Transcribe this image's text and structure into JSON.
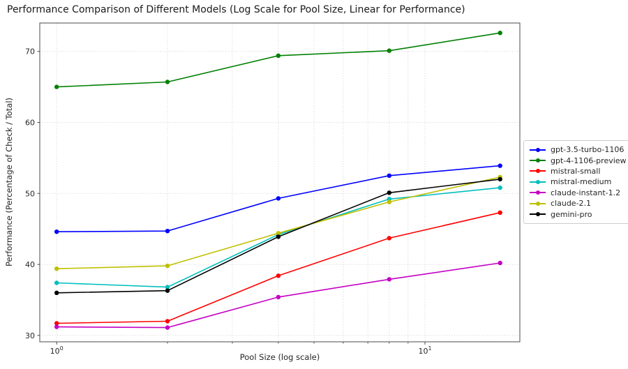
{
  "chart_data": {
    "type": "line",
    "title": "Performance Comparison of Different Models (Log Scale for Pool Size, Linear for Performance)",
    "xlabel": "Pool Size (log scale)",
    "ylabel": "Performance (Percentage of Check / Total)",
    "x": [
      1,
      2,
      4,
      8,
      16
    ],
    "series": [
      {
        "name": "gpt-3.5-turbo-1106",
        "color": "#0000ff",
        "values": [
          44.6,
          44.7,
          49.3,
          52.5,
          53.9
        ]
      },
      {
        "name": "gpt-4-1106-preview",
        "color": "#008000",
        "values": [
          65.0,
          65.7,
          69.4,
          70.1,
          72.6
        ]
      },
      {
        "name": "mistral-small",
        "color": "#ff0000",
        "values": [
          31.7,
          32.0,
          38.4,
          43.7,
          47.3
        ]
      },
      {
        "name": "mistral-medium",
        "color": "#00bfbf",
        "values": [
          37.4,
          36.8,
          44.2,
          49.2,
          50.8
        ]
      },
      {
        "name": "claude-instant-1.2",
        "color": "#c400c4",
        "values": [
          31.2,
          31.1,
          35.4,
          37.9,
          40.2
        ]
      },
      {
        "name": "claude-2.1",
        "color": "#bfbf00",
        "values": [
          39.4,
          39.8,
          44.4,
          48.8,
          52.3
        ]
      },
      {
        "name": "gemini-pro",
        "color": "#000000",
        "values": [
          36.0,
          36.3,
          43.9,
          50.1,
          52.0
        ]
      }
    ],
    "axes": {
      "xscale": "log",
      "xlim": [
        0.9,
        18.1
      ],
      "ylim": [
        29.1,
        74.0
      ],
      "y_ticks": [
        30,
        40,
        50,
        60,
        70
      ],
      "x_major_ticks": [
        {
          "value": 1,
          "base": "10",
          "exp": "0"
        },
        {
          "value": 10,
          "base": "10",
          "exp": "1"
        }
      ],
      "x_minor_ticks": [
        2,
        3,
        4,
        5,
        6,
        7,
        8,
        9
      ],
      "grid": "dotted-both",
      "legend_position": "center-right"
    },
    "style": {
      "grid_color": "#cdcdcd",
      "spine_color": "#4a4a4a",
      "text_color": "#262626",
      "background": "#ffffff"
    }
  }
}
